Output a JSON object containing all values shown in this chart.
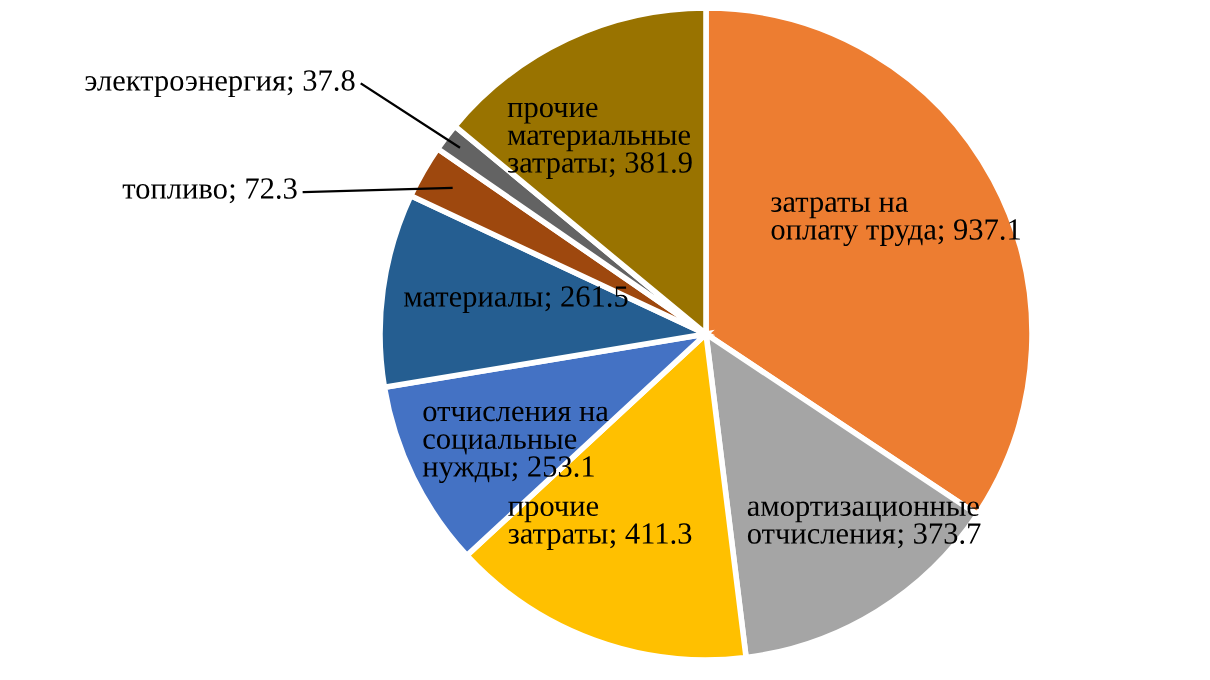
{
  "chart_data": {
    "type": "pie",
    "categories": [
      "затраты на оплату труда",
      "амортизационные отчисления",
      "прочие затраты",
      "отчисления на социальные нужды",
      "материалы",
      "топливо",
      "электроэнергия",
      "прочие материальные затраты"
    ],
    "values": [
      937.1,
      373.7,
      411.3,
      253.1,
      261.5,
      72.3,
      37.8,
      381.9
    ],
    "colors": [
      "#ed7d31",
      "#a5a5a5",
      "#ffc000",
      "#4472c4",
      "#255e91",
      "#9e480e",
      "#636363",
      "#997300"
    ],
    "value_labels": [
      "; 937.1",
      "; 373.7",
      "; 411.3",
      "; 253.1",
      "; 261.5",
      "; 72.3",
      "; 37.8",
      "; 381.9"
    ],
    "legend": false
  }
}
